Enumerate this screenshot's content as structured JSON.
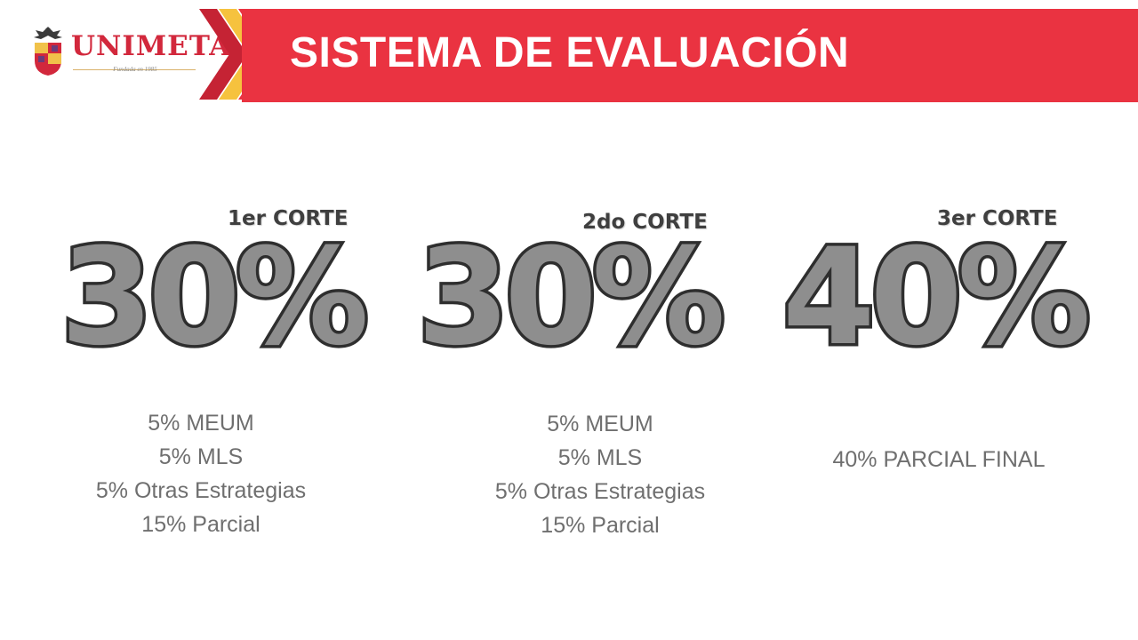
{
  "header": {
    "title": "SISTEMA DE EVALUACIÓN",
    "brand_color": "#ea3341",
    "chevron_colors": [
      "#f6c23e",
      "#c52334"
    ]
  },
  "logo": {
    "name": "UNIMETA",
    "tagline": "Fundada en 1985",
    "icon": "crest-icon"
  },
  "cortes": [
    {
      "label": "1er CORTE",
      "percent": "30%",
      "items": [
        "5% MEUM",
        "5% MLS",
        "5% Otras Estrategias",
        "15% Parcial"
      ]
    },
    {
      "label": "2do CORTE",
      "percent": "30%",
      "items": [
        "5% MEUM",
        "5% MLS",
        "5% Otras Estrategias",
        "15% Parcial"
      ]
    },
    {
      "label": "3er CORTE",
      "percent": "40%",
      "items": [
        "40% PARCIAL FINAL"
      ]
    }
  ]
}
